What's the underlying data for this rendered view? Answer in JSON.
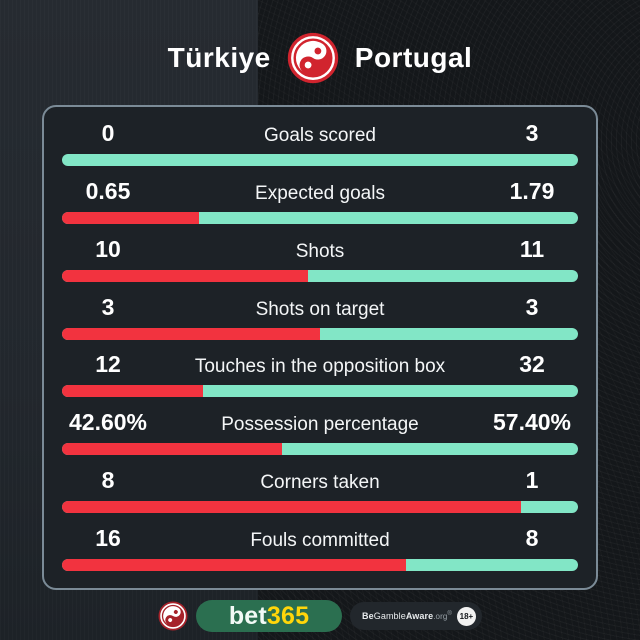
{
  "header": {
    "home_team": "Türkiye",
    "away_team": "Portugal"
  },
  "colors": {
    "home_bar": "#f2333f",
    "away_bar": "#82e6c6",
    "card_bg": "#1d2227",
    "card_border": "#7b8b97",
    "logo_red": "#d1242e",
    "footer_logo_red": "#a6222a",
    "brand_green": "#2b6f50",
    "brand_yellow": "#ffd60a"
  },
  "stats": [
    {
      "label": "Goals scored",
      "home_display": "0",
      "away_display": "3",
      "home_value": 0,
      "away_value": 3
    },
    {
      "label": "Expected goals",
      "home_display": "0.65",
      "away_display": "1.79",
      "home_value": 0.65,
      "away_value": 1.79
    },
    {
      "label": "Shots",
      "home_display": "10",
      "away_display": "11",
      "home_value": 10,
      "away_value": 11
    },
    {
      "label": "Shots on target",
      "home_display": "3",
      "away_display": "3",
      "home_value": 3,
      "away_value": 3
    },
    {
      "label": "Touches in the opposition box",
      "home_display": "12",
      "away_display": "32",
      "home_value": 12,
      "away_value": 32
    },
    {
      "label": "Possession percentage",
      "home_display": "42.60%",
      "away_display": "57.40%",
      "home_value": 42.6,
      "away_value": 57.4
    },
    {
      "label": "Corners taken",
      "home_display": "8",
      "away_display": "1",
      "home_value": 8,
      "away_value": 1
    },
    {
      "label": "Fouls committed",
      "home_display": "16",
      "away_display": "8",
      "home_value": 16,
      "away_value": 8
    }
  ],
  "footer": {
    "brand_bet": "bet",
    "brand_365": "365",
    "aware_be": "Be",
    "aware_gamble": "Gamble",
    "aware_aware": "Aware",
    "aware_org": ".org",
    "aware_reg": "®",
    "age_badge": "18+"
  },
  "chart_data": {
    "type": "bar",
    "title": "Türkiye vs Portugal — match statistics",
    "categories": [
      "Goals scored",
      "Expected goals",
      "Shots",
      "Shots on target",
      "Touches in the opposition box",
      "Possession percentage",
      "Corners taken",
      "Fouls committed"
    ],
    "series": [
      {
        "name": "Türkiye",
        "color": "#f2333f",
        "values": [
          0,
          0.65,
          10,
          3,
          12,
          42.6,
          8,
          16
        ]
      },
      {
        "name": "Portugal",
        "color": "#82e6c6",
        "values": [
          3,
          1.79,
          11,
          3,
          32,
          57.4,
          1,
          8
        ]
      }
    ],
    "orientation": "horizontal-paired",
    "note": "Each row bar shows home share (red) vs away share (teal) of the stat total",
    "grid": false,
    "legend_position": "none"
  }
}
